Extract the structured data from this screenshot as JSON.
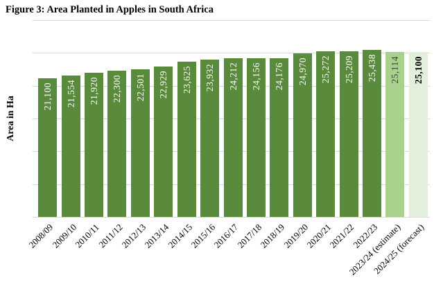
{
  "chart_data": {
    "type": "bar",
    "title": "Figure 3: Area Planted in Apples in South Africa",
    "xlabel": "",
    "ylabel": "Area in Ha",
    "categories": [
      "2008/09",
      "2009/10",
      "2010/11",
      "2011/12",
      "2012/13",
      "2013/14",
      "2014/15",
      "2015/16",
      "2016/17",
      "2017/18",
      "2018/19",
      "2019/20",
      "2020/21",
      "2021/22",
      "2022/23",
      "2023/24 (estimate)",
      "2024/25 (forecast)"
    ],
    "values": [
      21100,
      21554,
      21920,
      22300,
      22501,
      22929,
      23625,
      23932,
      24212,
      24156,
      24176,
      24970,
      25272,
      25209,
      25438,
      25114,
      25100
    ],
    "value_labels": [
      "21,100",
      "21,554",
      "21,920",
      "22,300",
      "22,501",
      "22,929",
      "23,625",
      "23,932",
      "24,212",
      "24,156",
      "24,176",
      "24,970",
      "25,272",
      "25,209",
      "25,438",
      "25,114",
      "25,100"
    ],
    "bar_styles": [
      "actual",
      "actual",
      "actual",
      "actual",
      "actual",
      "actual",
      "actual",
      "actual",
      "actual",
      "actual",
      "actual",
      "actual",
      "actual",
      "actual",
      "actual",
      "estimate",
      "forecast"
    ],
    "ylim": [
      0,
      30000
    ],
    "gridline_interval": 5000,
    "grid": true,
    "legend": "none",
    "y_tick_labels_shown": false,
    "colors": {
      "actual": "#5a8b3c",
      "estimate": "#a9d18e",
      "forecast": "#e2efda",
      "gridline": "#d9d9d9",
      "label_on_actual": "#ffffff",
      "label_on_estimate": "#3f3f3f",
      "label_on_forecast": "#000000",
      "title_text": "#000000"
    }
  }
}
